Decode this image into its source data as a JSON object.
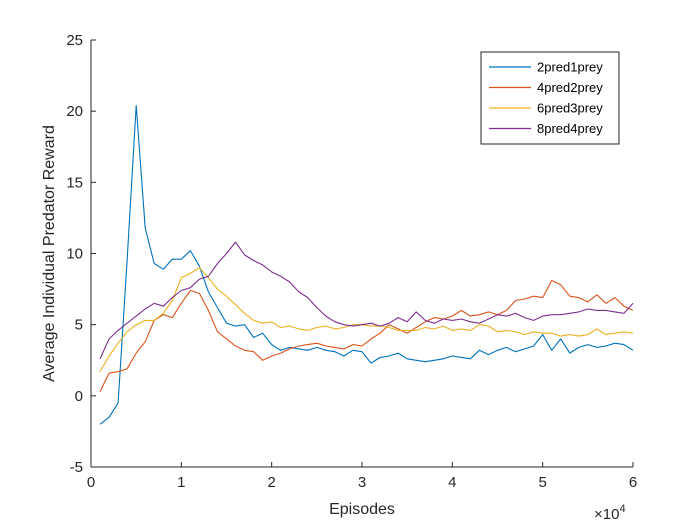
{
  "chart_data": {
    "type": "line",
    "xlabel": "Episodes",
    "ylabel": "Average Individual Predator Reward",
    "x_exponent_label": "×10",
    "x_exponent_power": "4",
    "xlim": [
      0,
      60000
    ],
    "ylim": [
      -5,
      25
    ],
    "xticks": [
      0,
      10000,
      20000,
      30000,
      40000,
      50000,
      60000
    ],
    "xtick_labels": [
      "0",
      "1",
      "2",
      "3",
      "4",
      "5",
      "6"
    ],
    "yticks": [
      -5,
      0,
      5,
      10,
      15,
      20,
      25
    ],
    "ytick_labels": [
      "-5",
      "0",
      "5",
      "10",
      "15",
      "20",
      "25"
    ],
    "grid": false,
    "legend_position": "top-right",
    "x": [
      1000,
      2000,
      3000,
      4000,
      5000,
      6000,
      7000,
      8000,
      9000,
      10000,
      11000,
      12000,
      13000,
      14000,
      15000,
      16000,
      17000,
      18000,
      19000,
      20000,
      21000,
      22000,
      23000,
      24000,
      25000,
      26000,
      27000,
      28000,
      29000,
      30000,
      31000,
      32000,
      33000,
      34000,
      35000,
      36000,
      37000,
      38000,
      39000,
      40000,
      41000,
      42000,
      43000,
      44000,
      45000,
      46000,
      47000,
      48000,
      49000,
      50000,
      51000,
      52000,
      53000,
      54000,
      55000,
      56000,
      57000,
      58000,
      59000,
      60000
    ],
    "series": [
      {
        "name": "2pred1prey",
        "color": "#0072BD",
        "values": [
          -2.0,
          -1.5,
          -0.5,
          9.5,
          20.4,
          11.8,
          9.3,
          8.9,
          9.6,
          9.6,
          10.2,
          9.1,
          7.3,
          6.2,
          5.1,
          4.9,
          5.0,
          4.1,
          4.4,
          3.6,
          3.2,
          3.4,
          3.3,
          3.2,
          3.4,
          3.2,
          3.1,
          2.8,
          3.2,
          3.1,
          2.3,
          2.7,
          2.8,
          3.0,
          2.6,
          2.5,
          2.4,
          2.5,
          2.6,
          2.8,
          2.7,
          2.6,
          3.2,
          2.9,
          3.2,
          3.4,
          3.1,
          3.3,
          3.5,
          4.3,
          3.2,
          4.0,
          3.0,
          3.4,
          3.6,
          3.4,
          3.5,
          3.7,
          3.6,
          3.2
        ]
      },
      {
        "name": "4pred2prey",
        "color": "#D95319",
        "values": [
          0.3,
          1.6,
          1.7,
          1.9,
          3.0,
          3.8,
          5.3,
          5.7,
          5.5,
          6.5,
          7.4,
          7.2,
          6.0,
          4.5,
          4.0,
          3.5,
          3.2,
          3.1,
          2.5,
          2.8,
          3.0,
          3.3,
          3.5,
          3.6,
          3.7,
          3.5,
          3.4,
          3.3,
          3.6,
          3.5,
          4.0,
          4.4,
          5.0,
          4.7,
          4.4,
          4.8,
          5.2,
          5.5,
          5.4,
          5.6,
          6.0,
          5.6,
          5.7,
          5.9,
          5.7,
          6.0,
          6.7,
          6.8,
          7.0,
          6.9,
          8.1,
          7.8,
          7.0,
          6.9,
          6.6,
          7.1,
          6.5,
          6.9,
          6.3,
          6.0
        ]
      },
      {
        "name": "6pred3prey",
        "color": "#EDB120",
        "values": [
          1.7,
          2.8,
          3.7,
          4.5,
          5.0,
          5.3,
          5.3,
          5.8,
          6.7,
          8.3,
          8.6,
          9.0,
          8.3,
          7.5,
          7.0,
          6.4,
          5.8,
          5.3,
          5.1,
          5.2,
          4.8,
          4.9,
          4.7,
          4.6,
          4.8,
          4.9,
          4.7,
          4.8,
          5.0,
          5.0,
          4.9,
          4.9,
          4.8,
          4.6,
          4.6,
          4.6,
          4.8,
          4.7,
          4.9,
          4.6,
          4.7,
          4.6,
          5.0,
          4.9,
          4.5,
          4.6,
          4.5,
          4.3,
          4.5,
          4.4,
          4.4,
          4.2,
          4.3,
          4.2,
          4.3,
          4.7,
          4.3,
          4.4,
          4.5,
          4.4
        ]
      },
      {
        "name": "8pred4prey",
        "color": "#7E2F8E",
        "values": [
          2.6,
          4.0,
          4.6,
          5.1,
          5.6,
          6.1,
          6.5,
          6.3,
          6.9,
          7.4,
          7.6,
          8.2,
          8.4,
          9.3,
          10.0,
          10.8,
          9.9,
          9.5,
          9.2,
          8.7,
          8.4,
          8.0,
          7.3,
          6.9,
          6.2,
          5.6,
          5.2,
          5.0,
          4.9,
          5.0,
          5.1,
          4.9,
          5.1,
          5.5,
          5.2,
          5.9,
          5.3,
          5.1,
          5.4,
          5.3,
          5.4,
          5.2,
          5.1,
          5.4,
          5.7,
          5.6,
          5.8,
          5.5,
          5.3,
          5.6,
          5.7,
          5.7,
          5.8,
          5.9,
          6.1,
          6.0,
          6.0,
          5.9,
          5.8,
          6.5
        ]
      }
    ]
  }
}
